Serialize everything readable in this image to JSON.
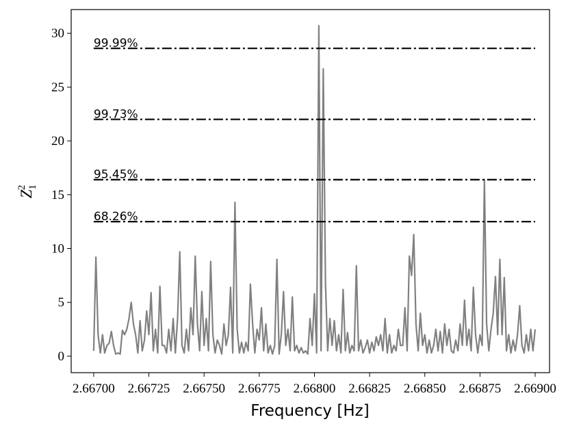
{
  "chart_data": {
    "type": "line",
    "xlabel": "Frequency [Hz]",
    "ylabel": {
      "base": "Z",
      "sub": "1",
      "sup": "2"
    },
    "color": "#808080",
    "x": [
      2.667,
      2.66701,
      2.66702,
      2.66703,
      2.66704,
      2.66705,
      2.66706,
      2.66707,
      2.66708,
      2.66709,
      2.6671,
      2.66711,
      2.66712,
      2.66713,
      2.66714,
      2.66715,
      2.66716,
      2.66717,
      2.66718,
      2.66719,
      2.6672,
      2.66721,
      2.66722,
      2.66723,
      2.66724,
      2.66725,
      2.66726,
      2.66727,
      2.66728,
      2.66729,
      2.6673,
      2.66731,
      2.66732,
      2.66733,
      2.66734,
      2.66735,
      2.66736,
      2.66737,
      2.66738,
      2.66739,
      2.6674,
      2.66741,
      2.66742,
      2.66743,
      2.66744,
      2.66745,
      2.66746,
      2.66747,
      2.66748,
      2.66749,
      2.6675,
      2.66751,
      2.66752,
      2.66753,
      2.66754,
      2.66755,
      2.66756,
      2.66757,
      2.66758,
      2.66759,
      2.6676,
      2.66761,
      2.66762,
      2.66763,
      2.66764,
      2.66765,
      2.66766,
      2.66767,
      2.66768,
      2.66769,
      2.6677,
      2.66771,
      2.66772,
      2.66773,
      2.66774,
      2.66775,
      2.66776,
      2.66777,
      2.66778,
      2.66779,
      2.6678,
      2.66781,
      2.66782,
      2.66783,
      2.66784,
      2.66785,
      2.66786,
      2.66787,
      2.66788,
      2.66789,
      2.6679,
      2.66791,
      2.66792,
      2.66793,
      2.66794,
      2.66795,
      2.66796,
      2.66797,
      2.66798,
      2.66799,
      2.668,
      2.66801,
      2.66802,
      2.66803,
      2.66804,
      2.66805,
      2.66806,
      2.66807,
      2.66808,
      2.66809,
      2.6681,
      2.66811,
      2.66812,
      2.66813,
      2.66814,
      2.66815,
      2.66816,
      2.66817,
      2.66818,
      2.66819,
      2.6682,
      2.66821,
      2.66822,
      2.66823,
      2.66824,
      2.66825,
      2.66826,
      2.66827,
      2.66828,
      2.66829,
      2.6683,
      2.66831,
      2.66832,
      2.66833,
      2.66834,
      2.66835,
      2.66836,
      2.66837,
      2.66838,
      2.66839,
      2.6684,
      2.66841,
      2.66842,
      2.66843,
      2.66844,
      2.66845,
      2.66846,
      2.66847,
      2.66848,
      2.66849,
      2.6685,
      2.66851,
      2.66852,
      2.66853,
      2.66854,
      2.66855,
      2.66856,
      2.66857,
      2.66858,
      2.66859,
      2.6686,
      2.66861,
      2.66862,
      2.66863,
      2.66864,
      2.66865,
      2.66866,
      2.66867,
      2.66868,
      2.66869,
      2.6687,
      2.66871,
      2.66872,
      2.66873,
      2.66874,
      2.66875,
      2.66876,
      2.66877,
      2.66878,
      2.66879,
      2.6688,
      2.66881,
      2.66882,
      2.66883,
      2.66884,
      2.66885,
      2.66886,
      2.66887,
      2.66888,
      2.66889,
      2.6689,
      2.66891,
      2.66892,
      2.66893,
      2.66894,
      2.66895,
      2.66896,
      2.66897,
      2.66898,
      2.66899,
      2.669
    ],
    "values": [
      0.5,
      9.2,
      2,
      0.3,
      2,
      0.3,
      1,
      1.2,
      2.3,
      1,
      0.2,
      0.3,
      0.2,
      2.4,
      2,
      2.5,
      3.5,
      5,
      3,
      2,
      0.3,
      3.3,
      0.5,
      1.5,
      4.2,
      2,
      5.9,
      0.5,
      2.5,
      0.3,
      6.5,
      1,
      1,
      0.3,
      2.5,
      0.5,
      3.5,
      0.3,
      3.5,
      9.7,
      1,
      0.3,
      2.5,
      0.5,
      4.5,
      2,
      9.3,
      3,
      0.5,
      6,
      1,
      3.5,
      0.5,
      8.8,
      2,
      0.3,
      1.5,
      1,
      0.2,
      3,
      1,
      2,
      6.4,
      0.3,
      14.3,
      2.5,
      0.3,
      1.3,
      0.3,
      1.3,
      0.5,
      6.7,
      3,
      0.3,
      2.5,
      1.5,
      4.5,
      0.5,
      3,
      0.3,
      1,
      0.2,
      1,
      9,
      0.2,
      2,
      6,
      1,
      2.5,
      0.5,
      5.5,
      0.5,
      1,
      0.3,
      0.8,
      0.3,
      0.5,
      0.2,
      3.5,
      1,
      5.8,
      0.3,
      30.7,
      0.5,
      26.7,
      6.8,
      0.5,
      3.5,
      1,
      3.3,
      0.5,
      2,
      0.3,
      6.2,
      0.5,
      2.2,
      0.3,
      1,
      0.5,
      8.4,
      0.5,
      1.5,
      0.3,
      0.8,
      1.5,
      0.3,
      1.3,
      0.5,
      1.8,
      1,
      2,
      0.5,
      3.5,
      0.3,
      2,
      0.3,
      1,
      0.5,
      2.5,
      1,
      1,
      4.5,
      0.5,
      9.3,
      7.5,
      11.3,
      3,
      0.5,
      4,
      1,
      2,
      0.3,
      1.5,
      0.3,
      1,
      2.5,
      0.5,
      2.3,
      0.3,
      3,
      1,
      2.5,
      0.5,
      0.3,
      1.5,
      0.5,
      3,
      1,
      5.2,
      1,
      2.5,
      0.5,
      6.4,
      2,
      0.3,
      2,
      1,
      16.4,
      3,
      0.5,
      2.5,
      4,
      7.4,
      2,
      9,
      2,
      7.3,
      0.5,
      2,
      0.3,
      1.5,
      0.5,
      2,
      4.7,
      1,
      0.3,
      2,
      0.5,
      2.5,
      0.5,
      2.5
    ],
    "thresholds": [
      {
        "label": "99.99%",
        "value": 28.6
      },
      {
        "label": "99.73%",
        "value": 22.0
      },
      {
        "label": "95.45%",
        "value": 16.4
      },
      {
        "label": "68.26%",
        "value": 12.5
      }
    ],
    "xlim": [
      2.666898,
      2.669065
    ],
    "ylim": [
      -1.53,
      32.2
    ],
    "xticks": [
      {
        "value": 2.667,
        "label": "2.66700"
      },
      {
        "value": 2.66725,
        "label": "2.66725"
      },
      {
        "value": 2.6675,
        "label": "2.66750"
      },
      {
        "value": 2.66775,
        "label": "2.66775"
      },
      {
        "value": 2.668,
        "label": "2.66800"
      },
      {
        "value": 2.66825,
        "label": "2.66825"
      },
      {
        "value": 2.6685,
        "label": "2.66850"
      },
      {
        "value": 2.66875,
        "label": "2.66875"
      },
      {
        "value": 2.669,
        "label": "2.66900"
      }
    ],
    "yticks": [
      0,
      5,
      10,
      15,
      20,
      25,
      30
    ]
  }
}
